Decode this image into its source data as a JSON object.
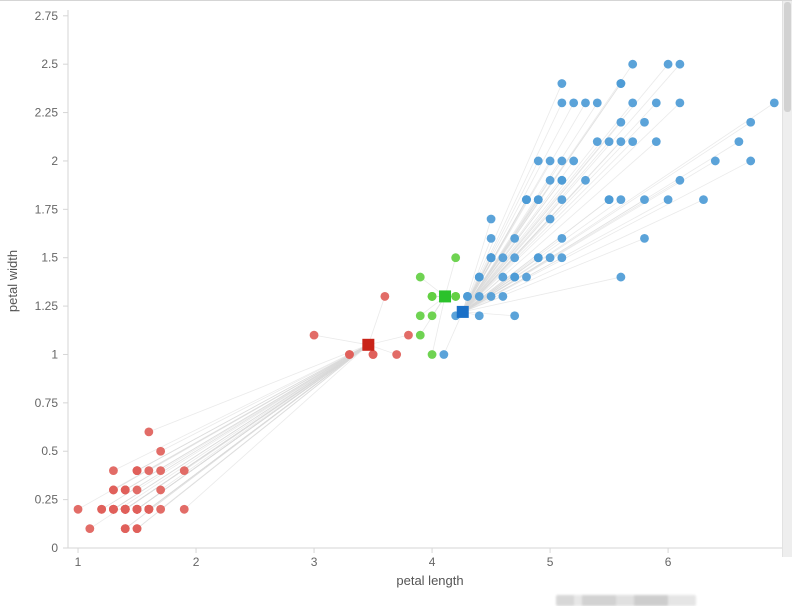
{
  "chart_data": {
    "type": "scatter",
    "title": "",
    "xlabel": "petal length",
    "ylabel": "petal width",
    "xlim": [
      0.915,
      7.05
    ],
    "ylim": [
      0,
      2.78
    ],
    "grid": false,
    "legend": false,
    "axis_color": "#d6d6d6",
    "tick_label_color": "#666666",
    "axis_title_color": "#555555",
    "link_color": "#d8d8d8",
    "x_ticks": [
      {
        "v": 1,
        "label": "1"
      },
      {
        "v": 2,
        "label": "2"
      },
      {
        "v": 3,
        "label": "3"
      },
      {
        "v": 4,
        "label": "4"
      },
      {
        "v": 5,
        "label": "5"
      },
      {
        "v": 6,
        "label": "6"
      }
    ],
    "y_ticks": [
      {
        "v": 0,
        "label": "0"
      },
      {
        "v": 0.25,
        "label": "0.25"
      },
      {
        "v": 0.5,
        "label": "0.5"
      },
      {
        "v": 0.75,
        "label": "0.75"
      },
      {
        "v": 1,
        "label": "1"
      },
      {
        "v": 1.25,
        "label": "1.25"
      },
      {
        "v": 1.5,
        "label": "1.5"
      },
      {
        "v": 1.75,
        "label": "1.75"
      },
      {
        "v": 2,
        "label": "2"
      },
      {
        "v": 2.25,
        "label": "2.25"
      },
      {
        "v": 2.5,
        "label": "2.5"
      },
      {
        "v": 2.75,
        "label": "2.75"
      }
    ],
    "clusters": [
      {
        "name": "cluster-red",
        "point_color": "#e0605a",
        "centroid_color": "#c92318",
        "centroid": [
          3.46,
          1.05
        ],
        "points": [
          [
            1.4,
            0.2
          ],
          [
            1.4,
            0.2
          ],
          [
            1.3,
            0.2
          ],
          [
            1.5,
            0.2
          ],
          [
            1.4,
            0.2
          ],
          [
            1.7,
            0.4
          ],
          [
            1.4,
            0.3
          ],
          [
            1.5,
            0.2
          ],
          [
            1.4,
            0.2
          ],
          [
            1.5,
            0.1
          ],
          [
            1.5,
            0.2
          ],
          [
            1.6,
            0.2
          ],
          [
            1.4,
            0.1
          ],
          [
            1.1,
            0.1
          ],
          [
            1.2,
            0.2
          ],
          [
            1.5,
            0.4
          ],
          [
            1.3,
            0.4
          ],
          [
            1.4,
            0.3
          ],
          [
            1.7,
            0.3
          ],
          [
            1.5,
            0.3
          ],
          [
            1.7,
            0.2
          ],
          [
            1.5,
            0.4
          ],
          [
            1.0,
            0.2
          ],
          [
            1.7,
            0.5
          ],
          [
            1.9,
            0.2
          ],
          [
            1.6,
            0.2
          ],
          [
            1.6,
            0.4
          ],
          [
            1.5,
            0.2
          ],
          [
            1.4,
            0.2
          ],
          [
            1.6,
            0.2
          ],
          [
            1.6,
            0.2
          ],
          [
            1.5,
            0.4
          ],
          [
            1.5,
            0.1
          ],
          [
            1.4,
            0.2
          ],
          [
            1.5,
            0.2
          ],
          [
            1.2,
            0.2
          ],
          [
            1.3,
            0.2
          ],
          [
            1.4,
            0.1
          ],
          [
            1.3,
            0.2
          ],
          [
            1.5,
            0.2
          ],
          [
            1.3,
            0.3
          ],
          [
            1.3,
            0.3
          ],
          [
            1.3,
            0.2
          ],
          [
            1.6,
            0.6
          ],
          [
            1.9,
            0.4
          ],
          [
            1.4,
            0.3
          ],
          [
            1.6,
            0.2
          ],
          [
            1.4,
            0.2
          ],
          [
            1.5,
            0.2
          ],
          [
            1.4,
            0.2
          ],
          [
            3.3,
            1.0
          ],
          [
            3.5,
            1.0
          ],
          [
            3.6,
            1.3
          ],
          [
            3.5,
            1.0
          ],
          [
            3.8,
            1.1
          ],
          [
            3.7,
            1.0
          ],
          [
            3.3,
            1.0
          ],
          [
            3.0,
            1.1
          ]
        ]
      },
      {
        "name": "cluster-green",
        "point_color": "#63cf43",
        "centroid_color": "#2bc22b",
        "centroid": [
          4.11,
          1.3
        ],
        "points": [
          [
            4.0,
            1.3
          ],
          [
            3.9,
            1.4
          ],
          [
            4.2,
            1.5
          ],
          [
            4.0,
            1.0
          ],
          [
            3.9,
            1.1
          ],
          [
            4.0,
            1.3
          ],
          [
            3.9,
            1.2
          ],
          [
            4.1,
            1.3
          ],
          [
            4.0,
            1.3
          ],
          [
            4.0,
            1.2
          ],
          [
            4.2,
            1.3
          ],
          [
            4.2,
            1.3
          ],
          [
            4.1,
            1.3
          ]
        ]
      },
      {
        "name": "cluster-blue",
        "point_color": "#4d9bd6",
        "centroid_color": "#1a70c7",
        "centroid": [
          4.26,
          1.22
        ],
        "points": [
          [
            4.7,
            1.4
          ],
          [
            4.5,
            1.5
          ],
          [
            4.9,
            1.5
          ],
          [
            4.6,
            1.5
          ],
          [
            4.5,
            1.3
          ],
          [
            4.7,
            1.6
          ],
          [
            4.6,
            1.3
          ],
          [
            4.7,
            1.4
          ],
          [
            4.4,
            1.4
          ],
          [
            4.5,
            1.5
          ],
          [
            4.1,
            1.0
          ],
          [
            4.5,
            1.5
          ],
          [
            4.8,
            1.8
          ],
          [
            4.9,
            1.5
          ],
          [
            4.7,
            1.2
          ],
          [
            4.3,
            1.3
          ],
          [
            4.4,
            1.4
          ],
          [
            4.8,
            1.4
          ],
          [
            5.0,
            1.7
          ],
          [
            4.5,
            1.5
          ],
          [
            5.1,
            1.6
          ],
          [
            4.5,
            1.5
          ],
          [
            4.5,
            1.6
          ],
          [
            4.7,
            1.5
          ],
          [
            4.4,
            1.3
          ],
          [
            4.4,
            1.2
          ],
          [
            4.6,
            1.4
          ],
          [
            4.2,
            1.2
          ],
          [
            4.3,
            1.3
          ],
          [
            6.0,
            2.5
          ],
          [
            5.1,
            1.9
          ],
          [
            5.9,
            2.1
          ],
          [
            5.6,
            1.8
          ],
          [
            5.8,
            2.2
          ],
          [
            6.6,
            2.1
          ],
          [
            4.5,
            1.7
          ],
          [
            6.3,
            1.8
          ],
          [
            5.8,
            1.8
          ],
          [
            6.1,
            2.5
          ],
          [
            5.1,
            2.0
          ],
          [
            5.3,
            1.9
          ],
          [
            5.5,
            2.1
          ],
          [
            5.0,
            2.0
          ],
          [
            5.1,
            2.4
          ],
          [
            5.3,
            2.3
          ],
          [
            5.5,
            1.8
          ],
          [
            6.7,
            2.2
          ],
          [
            6.9,
            2.3
          ],
          [
            5.0,
            1.5
          ],
          [
            5.7,
            2.3
          ],
          [
            4.9,
            2.0
          ],
          [
            6.7,
            2.0
          ],
          [
            4.9,
            1.8
          ],
          [
            5.7,
            2.1
          ],
          [
            6.0,
            1.8
          ],
          [
            4.8,
            1.8
          ],
          [
            4.9,
            1.8
          ],
          [
            5.6,
            2.1
          ],
          [
            5.8,
            1.6
          ],
          [
            6.1,
            1.9
          ],
          [
            6.4,
            2.0
          ],
          [
            5.6,
            2.2
          ],
          [
            5.1,
            1.5
          ],
          [
            5.6,
            1.4
          ],
          [
            6.1,
            2.3
          ],
          [
            5.6,
            2.4
          ],
          [
            5.5,
            1.8
          ],
          [
            4.8,
            1.8
          ],
          [
            5.4,
            2.1
          ],
          [
            5.6,
            2.4
          ],
          [
            5.1,
            2.3
          ],
          [
            5.1,
            1.9
          ],
          [
            5.9,
            2.3
          ],
          [
            5.7,
            2.5
          ],
          [
            5.2,
            2.3
          ],
          [
            5.0,
            1.9
          ],
          [
            5.2,
            2.0
          ],
          [
            5.4,
            2.3
          ],
          [
            5.1,
            1.8
          ]
        ]
      }
    ]
  }
}
